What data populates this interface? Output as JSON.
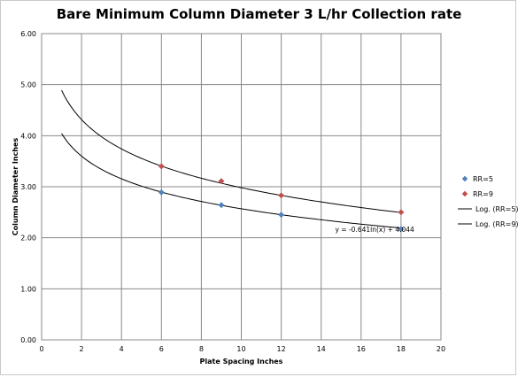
{
  "chart_data": {
    "type": "scatter",
    "title": "Bare Minimum Column Diameter 3 L/hr Collection rate",
    "xlabel": "Plate Spacing  Inches",
    "ylabel": "Column Diameter Inches",
    "xlim": [
      0,
      20
    ],
    "ylim": [
      0,
      6
    ],
    "x_ticks": [
      0,
      2,
      4,
      6,
      8,
      10,
      12,
      14,
      16,
      18,
      20
    ],
    "x_tick_labels": [
      "0",
      "2",
      "4",
      "6",
      "8",
      "10",
      "12",
      "14",
      "16",
      "18",
      "20"
    ],
    "y_ticks": [
      0,
      1,
      2,
      3,
      4,
      5,
      6
    ],
    "y_tick_labels": [
      "0.00",
      "1.00",
      "2.00",
      "3.00",
      "4.00",
      "5.00",
      "6.00"
    ],
    "grid": "on",
    "legend_position": "right",
    "series": [
      {
        "name": "RR=5",
        "color": "#4f81bd",
        "marker": "diamond",
        "x": [
          6,
          9,
          12,
          18
        ],
        "y": [
          2.89,
          2.64,
          2.45,
          2.17
        ]
      },
      {
        "name": "RR=9",
        "color": "#c0504d",
        "marker": "diamond",
        "x": [
          6,
          9,
          12,
          18
        ],
        "y": [
          3.4,
          3.11,
          2.83,
          2.5
        ]
      }
    ],
    "trendlines": [
      {
        "name": "Log. (RR=5)",
        "type": "log",
        "a": -0.641,
        "b": 4.044,
        "x_range": [
          1,
          18
        ],
        "color": "#000000"
      },
      {
        "name": "Log. (RR=9)",
        "type": "log",
        "a": -0.829,
        "b": 4.89,
        "x_range": [
          1,
          18
        ],
        "color": "#000000"
      }
    ],
    "annotations": [
      {
        "text": "y = -0.641ln(x) + 4.044",
        "x": 14.7,
        "y": 2.17
      }
    ]
  }
}
